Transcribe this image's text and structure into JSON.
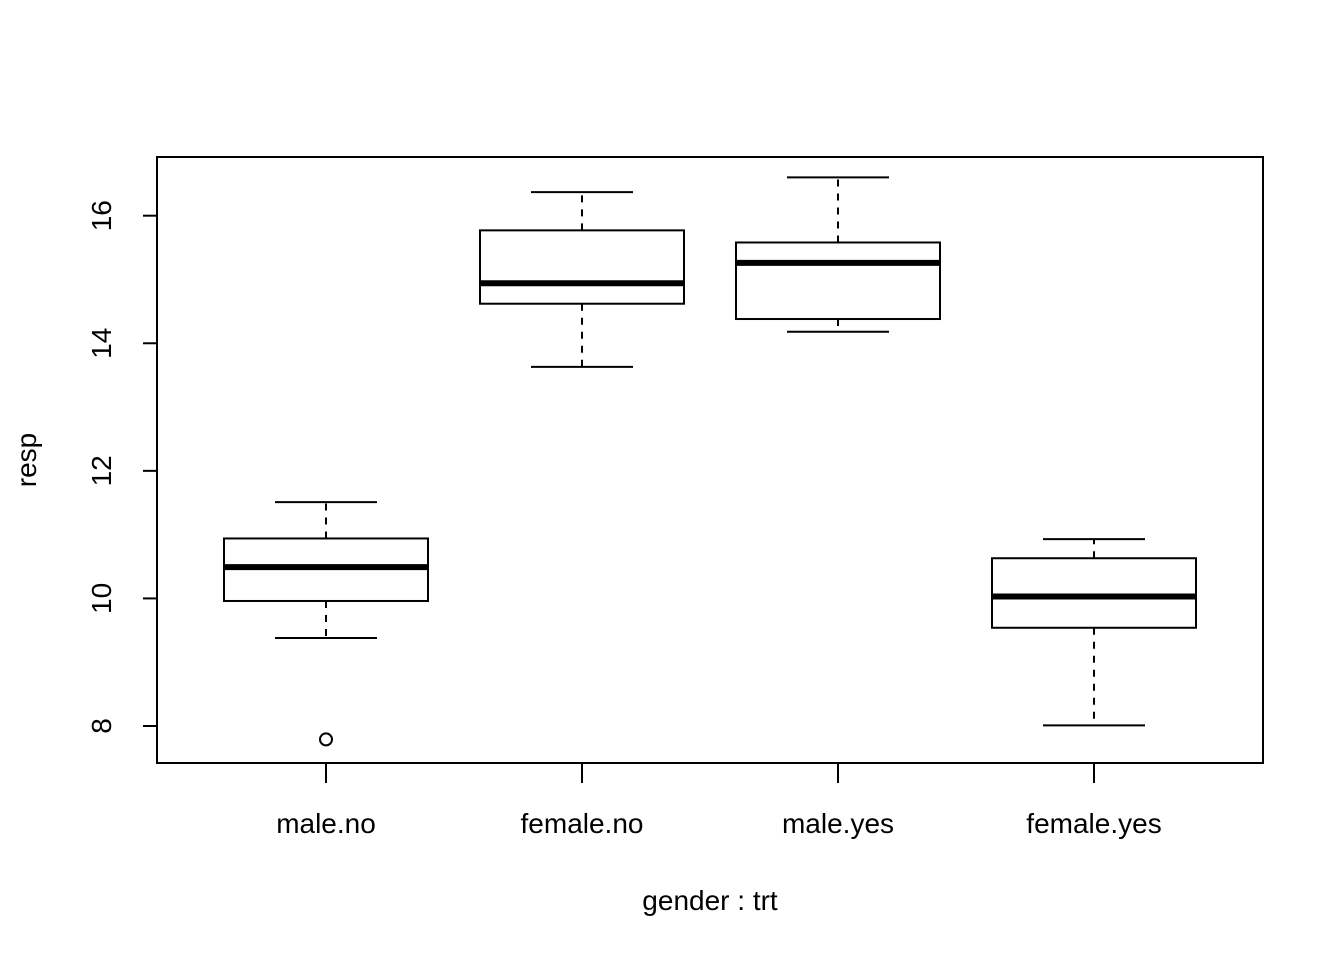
{
  "chart_data": {
    "type": "box",
    "title": "",
    "xlabel": "gender : trt",
    "ylabel": "resp",
    "ylim": [
      7.42,
      16.92
    ],
    "yticks": [
      8,
      10,
      12,
      14,
      16
    ],
    "grid": false,
    "colors": {
      "stroke": "#000000",
      "fill": "#ffffff"
    },
    "categories": [
      "male.no",
      "female.no",
      "male.yes",
      "female.yes"
    ],
    "boxes": [
      {
        "name": "male.no",
        "whisker_low": 9.38,
        "q1": 9.96,
        "median": 10.49,
        "q3": 10.94,
        "whisker_high": 11.51,
        "outliers": [
          7.79
        ]
      },
      {
        "name": "female.no",
        "whisker_low": 13.63,
        "q1": 14.62,
        "median": 14.94,
        "q3": 15.77,
        "whisker_high": 16.37,
        "outliers": []
      },
      {
        "name": "male.yes",
        "whisker_low": 14.18,
        "q1": 14.38,
        "median": 15.26,
        "q3": 15.58,
        "whisker_high": 16.6,
        "outliers": []
      },
      {
        "name": "female.yes",
        "whisker_low": 8.01,
        "q1": 9.54,
        "median": 10.03,
        "q3": 10.63,
        "whisker_high": 10.93,
        "outliers": []
      }
    ]
  }
}
